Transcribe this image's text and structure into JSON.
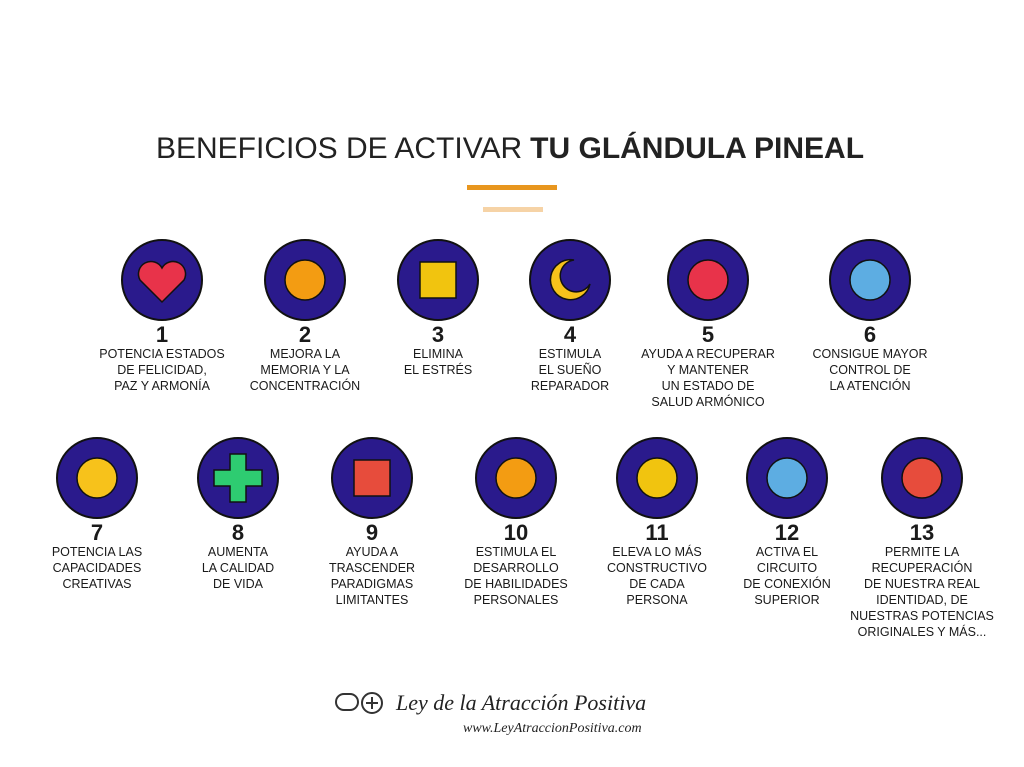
{
  "header": {
    "title_light": "BENEFICIOS DE ACTIVAR",
    "title_bold": "TU GLÁNDULA PINEAL"
  },
  "items": [
    {
      "number": "1",
      "lines": [
        "POTENCIA ESTADOS",
        "DE FELICIDAD,",
        "PAZ Y ARMONÍA"
      ]
    },
    {
      "number": "2",
      "lines": [
        "MEJORA LA",
        "MEMORIA Y LA",
        "CONCENTRACIÓN"
      ]
    },
    {
      "number": "3",
      "lines": [
        "ELIMINA",
        "EL ESTRÉS"
      ]
    },
    {
      "number": "4",
      "lines": [
        "ESTIMULA",
        "EL SUEÑO",
        "REPARADOR"
      ]
    },
    {
      "number": "5",
      "lines": [
        "AYUDA A RECUPERAR",
        "Y MANTENER",
        "UN ESTADO DE",
        "SALUD ARMÓNICO"
      ]
    },
    {
      "number": "6",
      "lines": [
        "CONSIGUE MAYOR",
        "CONTROL DE",
        "LA ATENCIÓN"
      ]
    },
    {
      "number": "7",
      "lines": [
        "POTENCIA LAS",
        "CAPACIDADES",
        "CREATIVAS"
      ]
    },
    {
      "number": "8",
      "lines": [
        "AUMENTA",
        "LA CALIDAD",
        "DE VIDA"
      ]
    },
    {
      "number": "9",
      "lines": [
        "AYUDA A",
        "TRASCENDER",
        "PARADIGMAS",
        "LIMITANTES"
      ]
    },
    {
      "number": "10",
      "lines": [
        "ESTIMULA EL",
        "DESARROLLO",
        "DE HABILIDADES",
        "PERSONALES"
      ]
    },
    {
      "number": "11",
      "lines": [
        "ELEVA LO MÁS",
        "CONSTRUCTIVO",
        "DE CADA",
        "PERSONA"
      ]
    },
    {
      "number": "12",
      "lines": [
        "ACTIVA EL",
        "CIRCUITO",
        "DE CONEXIÓN",
        "SUPERIOR"
      ]
    },
    {
      "number": "13",
      "lines": [
        "PERMITE LA",
        "RECUPERACIÓN",
        "DE NUESTRA REAL",
        "IDENTIDAD, DE",
        "NUESTRAS POTENCIAS",
        "ORIGINALES Y MÁS..."
      ]
    }
  ],
  "footer": {
    "brand": "Ley de la Atracción Positiva",
    "url": "www.LeyAtraccionPositiva.com"
  }
}
